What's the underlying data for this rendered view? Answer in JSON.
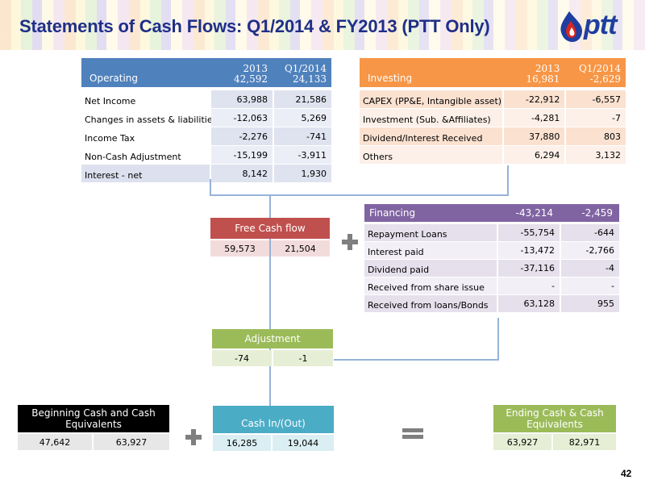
{
  "title": "Statements of Cash Flows: Q1/2014 & FY2013 (PTT Only)",
  "logo_text": "ptt",
  "colors": {
    "title": "#1f2f88",
    "operating": "#4f81bd",
    "investing": "#f79646",
    "financing": "#8064a2",
    "free_cash_flow": "#c0504d",
    "adjustment": "#9bbb59",
    "beginning": "#000000",
    "cash_in_out": "#4bacc6",
    "ending": "#9bbb59",
    "connector": "#95b3d7"
  },
  "operating": {
    "name": "Operating",
    "col1": {
      "label": "2013",
      "total": "42,592"
    },
    "col2": {
      "label": "Q1/2014",
      "total": "24,133"
    },
    "rows": [
      {
        "label": "Net Income",
        "v2013": "63,988",
        "vq1": "21,586"
      },
      {
        "label": "Changes in assets & liabilities",
        "v2013": "-12,063",
        "vq1": "5,269"
      },
      {
        "label": "Income Tax",
        "v2013": "-2,276",
        "vq1": "-741"
      },
      {
        "label": "Non-Cash  Adjustment",
        "v2013": "-15,199",
        "vq1": "-3,911"
      },
      {
        "label": "Interest - net",
        "v2013": "8,142",
        "vq1": "1,930"
      }
    ]
  },
  "investing": {
    "name": "Investing",
    "col1": {
      "label": "2013",
      "total": "16,981"
    },
    "col2": {
      "label": "Q1/2014",
      "total": "-2,629"
    },
    "rows": [
      {
        "label": "CAPEX (PP&E, Intangible asset)",
        "v2013": "-22,912",
        "vq1": "-6,557"
      },
      {
        "label": "Investment (Sub. &Affiliates)",
        "v2013": "-4,281",
        "vq1": "-7"
      },
      {
        "label": "Dividend/Interest Received",
        "v2013": "37,880",
        "vq1": "803"
      },
      {
        "label": "Others",
        "v2013": "6,294",
        "vq1": "3,132"
      }
    ]
  },
  "financing": {
    "name": "Financing",
    "v2013": "-43,214",
    "vq1": "-2,459",
    "rows": [
      {
        "label": "Repayment  Loans",
        "v2013": "-55,754",
        "vq1": "-644"
      },
      {
        "label": "Interest paid",
        "v2013": "-13,472",
        "vq1": "-2,766"
      },
      {
        "label": "Dividend paid",
        "v2013": "-37,116",
        "vq1": "-4"
      },
      {
        "label": "Received from share issue",
        "v2013": "-",
        "vq1": "-"
      },
      {
        "label": "Received from loans/Bonds",
        "v2013": "63,128",
        "vq1": "955"
      }
    ]
  },
  "free_cash_flow": {
    "label": "Free Cash flow",
    "v2013": "59,573",
    "vq1": "21,504"
  },
  "adjustment": {
    "label": "Adjustment",
    "v2013": "-74",
    "vq1": "-1"
  },
  "beginning_cash": {
    "label": "Beginning Cash and Cash Equivalents",
    "v2013": "47,642",
    "vq1": "63,927"
  },
  "cash_in_out": {
    "label": "Cash In/(Out)",
    "v2013": "16,285",
    "vq1": "19,044"
  },
  "ending_cash": {
    "label": "Ending Cash & Cash Equivalents",
    "v2013": "63,927",
    "vq1": "82,971"
  },
  "page_number": "42"
}
